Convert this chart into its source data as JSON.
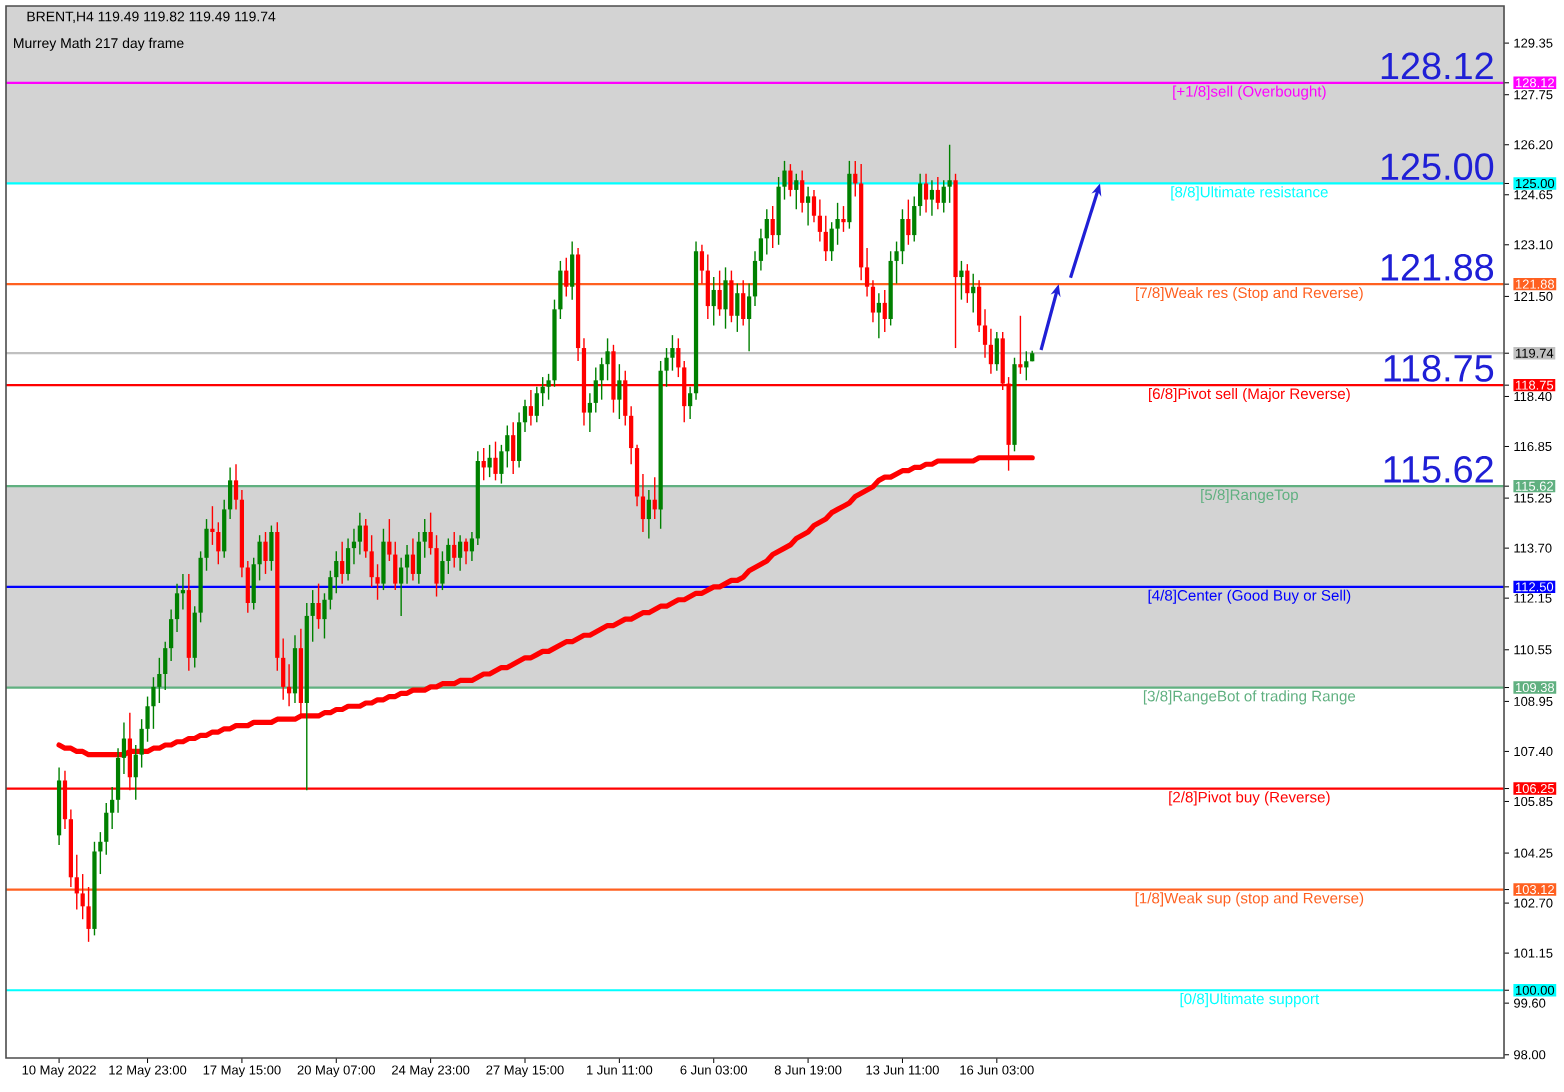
{
  "chart_data": {
    "type": "candlestick",
    "title": "BRENT,H4 119.49 119.82 119.49 119.74",
    "subtitle": "Murrey Math 217 day frame",
    "categories": [
      "10 May 2022",
      null,
      null,
      null,
      null,
      null,
      null,
      null,
      null,
      null,
      null,
      null,
      null,
      null,
      null,
      "12 May 23:00",
      null,
      null,
      null,
      null,
      null,
      null,
      null,
      null,
      null,
      null,
      null,
      null,
      null,
      null,
      null,
      "17 May 15:00",
      null,
      null,
      null,
      null,
      null,
      null,
      null,
      null,
      null,
      null,
      null,
      null,
      null,
      null,
      null,
      "20 May 07:00",
      null,
      null,
      null,
      null,
      null,
      null,
      null,
      null,
      null,
      null,
      null,
      null,
      null,
      null,
      null,
      "24 May 23:00",
      null,
      null,
      null,
      null,
      null,
      null,
      null,
      null,
      null,
      null,
      null,
      null,
      null,
      null,
      null,
      "27 May 15:00",
      null,
      null,
      null,
      null,
      null,
      null,
      null,
      null,
      null,
      null,
      null,
      null,
      null,
      null,
      null,
      "1 Jun 11:00",
      null,
      null,
      null,
      null,
      null,
      null,
      null,
      null,
      null,
      null,
      null,
      null,
      null,
      null,
      null,
      "6 Jun 03:00",
      null,
      null,
      null,
      null,
      null,
      null,
      null,
      null,
      null,
      null,
      null,
      null,
      null,
      null,
      null,
      "8 Jun 19:00",
      null,
      null,
      null,
      null,
      null,
      null,
      null,
      null,
      null,
      null,
      null,
      null,
      null,
      null,
      null,
      "13 Jun 11:00",
      null,
      null,
      null,
      null,
      null,
      null,
      null,
      null,
      null,
      null,
      null,
      null,
      null,
      null,
      null,
      "16 Jun 03:00",
      null,
      null,
      null,
      null,
      null,
      null
    ],
    "ohlc": [
      [
        104.8,
        106.9,
        104.5,
        106.5
      ],
      [
        106.5,
        106.8,
        105.0,
        105.3
      ],
      [
        105.3,
        105.6,
        103.2,
        103.5
      ],
      [
        103.5,
        104.2,
        102.5,
        103.0
      ],
      [
        103.0,
        103.6,
        102.2,
        102.6
      ],
      [
        102.6,
        103.2,
        101.5,
        101.9
      ],
      [
        101.9,
        104.6,
        101.7,
        104.3
      ],
      [
        104.3,
        104.9,
        103.6,
        104.6
      ],
      [
        104.6,
        105.8,
        104.2,
        105.5
      ],
      [
        105.5,
        106.3,
        105.0,
        105.9
      ],
      [
        105.9,
        107.5,
        105.5,
        107.2
      ],
      [
        107.2,
        108.3,
        106.7,
        107.8
      ],
      [
        107.8,
        108.6,
        106.2,
        106.6
      ],
      [
        106.6,
        107.6,
        105.9,
        107.3
      ],
      [
        107.3,
        108.4,
        106.9,
        108.1
      ],
      [
        108.1,
        109.1,
        107.7,
        108.8
      ],
      [
        108.8,
        109.7,
        108.1,
        109.4
      ],
      [
        109.4,
        110.3,
        108.9,
        109.8
      ],
      [
        109.8,
        110.8,
        109.3,
        110.6
      ],
      [
        110.6,
        111.8,
        110.2,
        111.5
      ],
      [
        111.5,
        112.6,
        111.1,
        112.3
      ],
      [
        112.3,
        112.9,
        111.8,
        112.4
      ],
      [
        112.4,
        112.9,
        109.9,
        110.3
      ],
      [
        110.3,
        111.9,
        110.0,
        111.7
      ],
      [
        111.7,
        113.6,
        111.4,
        113.4
      ],
      [
        113.4,
        114.6,
        113.0,
        114.3
      ],
      [
        114.3,
        115.0,
        113.8,
        114.2
      ],
      [
        114.2,
        114.5,
        113.2,
        113.6
      ],
      [
        113.6,
        115.2,
        113.4,
        114.9
      ],
      [
        114.9,
        116.2,
        114.6,
        115.8
      ],
      [
        115.8,
        116.3,
        114.9,
        115.2
      ],
      [
        115.2,
        115.5,
        112.8,
        113.1
      ],
      [
        113.1,
        113.3,
        111.7,
        112.0
      ],
      [
        112.0,
        113.4,
        111.8,
        113.2
      ],
      [
        113.2,
        114.1,
        112.7,
        113.9
      ],
      [
        113.9,
        114.2,
        112.9,
        113.3
      ],
      [
        113.3,
        114.4,
        113.0,
        114.2
      ],
      [
        114.2,
        114.5,
        109.9,
        110.3
      ],
      [
        110.3,
        110.9,
        109.0,
        109.4
      ],
      [
        109.4,
        110.1,
        108.8,
        109.2
      ],
      [
        109.2,
        111.0,
        108.9,
        110.6
      ],
      [
        110.6,
        111.2,
        108.5,
        108.9
      ],
      [
        108.9,
        112.0,
        106.2,
        111.6
      ],
      [
        111.6,
        112.4,
        110.8,
        112.0
      ],
      [
        112.0,
        112.6,
        111.2,
        111.5
      ],
      [
        111.5,
        112.3,
        110.9,
        112.1
      ],
      [
        112.1,
        113.0,
        111.8,
        112.8
      ],
      [
        112.8,
        113.6,
        112.3,
        113.3
      ],
      [
        113.3,
        113.9,
        112.6,
        112.9
      ],
      [
        112.9,
        114.0,
        112.7,
        113.7
      ],
      [
        113.7,
        114.3,
        113.2,
        113.9
      ],
      [
        113.9,
        114.8,
        113.5,
        114.4
      ],
      [
        114.4,
        114.6,
        113.4,
        113.6
      ],
      [
        113.6,
        114.1,
        112.5,
        112.8
      ],
      [
        112.8,
        113.2,
        112.1,
        112.6
      ],
      [
        112.6,
        114.3,
        112.4,
        113.9
      ],
      [
        113.9,
        114.6,
        113.3,
        113.5
      ],
      [
        113.5,
        113.9,
        112.4,
        112.6
      ],
      [
        112.6,
        113.4,
        111.6,
        113.1
      ],
      [
        113.1,
        113.8,
        112.6,
        113.5
      ],
      [
        113.5,
        114.0,
        112.7,
        112.9
      ],
      [
        112.9,
        114.2,
        112.6,
        113.9
      ],
      [
        113.9,
        114.6,
        113.4,
        114.2
      ],
      [
        114.2,
        114.8,
        113.5,
        113.7
      ],
      [
        113.7,
        114.1,
        112.2,
        112.6
      ],
      [
        112.6,
        113.6,
        112.4,
        113.3
      ],
      [
        113.3,
        114.0,
        112.9,
        113.8
      ],
      [
        113.8,
        114.2,
        113.1,
        113.4
      ],
      [
        113.4,
        114.1,
        113.0,
        113.9
      ],
      [
        113.9,
        114.0,
        113.2,
        113.6
      ],
      [
        113.6,
        114.2,
        113.3,
        114.0
      ],
      [
        114.0,
        116.7,
        113.8,
        116.4
      ],
      [
        116.4,
        116.8,
        115.8,
        116.2
      ],
      [
        116.2,
        116.9,
        115.9,
        116.5
      ],
      [
        116.5,
        117.0,
        115.8,
        116.0
      ],
      [
        116.0,
        116.9,
        115.7,
        116.7
      ],
      [
        116.7,
        117.5,
        116.2,
        117.2
      ],
      [
        117.2,
        117.6,
        116.0,
        116.4
      ],
      [
        116.4,
        117.9,
        116.2,
        117.6
      ],
      [
        117.6,
        118.3,
        117.3,
        118.1
      ],
      [
        118.1,
        118.6,
        117.5,
        117.8
      ],
      [
        117.8,
        118.7,
        117.6,
        118.5
      ],
      [
        118.5,
        119.0,
        118.1,
        118.7
      ],
      [
        118.7,
        119.1,
        118.3,
        118.9
      ],
      [
        118.9,
        121.4,
        118.7,
        121.1
      ],
      [
        121.1,
        122.6,
        120.8,
        122.3
      ],
      [
        122.3,
        122.7,
        121.5,
        121.8
      ],
      [
        121.8,
        123.2,
        121.4,
        122.8
      ],
      [
        122.8,
        123.0,
        119.5,
        119.9
      ],
      [
        119.9,
        120.2,
        117.5,
        117.9
      ],
      [
        117.9,
        118.5,
        117.3,
        118.2
      ],
      [
        118.2,
        119.3,
        117.9,
        118.9
      ],
      [
        118.9,
        119.6,
        118.3,
        119.4
      ],
      [
        119.4,
        120.2,
        118.9,
        119.8
      ],
      [
        119.8,
        120.0,
        117.9,
        118.3
      ],
      [
        118.3,
        119.4,
        117.7,
        118.9
      ],
      [
        118.9,
        119.2,
        117.5,
        117.8
      ],
      [
        117.8,
        118.1,
        116.3,
        116.8
      ],
      [
        116.8,
        116.9,
        115.0,
        115.3
      ],
      [
        115.3,
        116.0,
        114.2,
        114.6
      ],
      [
        114.6,
        115.5,
        114.0,
        115.2
      ],
      [
        115.2,
        115.9,
        114.6,
        114.9
      ],
      [
        114.9,
        119.5,
        114.3,
        119.2
      ],
      [
        119.2,
        119.9,
        118.7,
        119.6
      ],
      [
        119.6,
        120.3,
        119.2,
        119.9
      ],
      [
        119.9,
        120.2,
        119.0,
        119.3
      ],
      [
        119.3,
        119.5,
        117.6,
        118.1
      ],
      [
        118.1,
        118.7,
        117.7,
        118.5
      ],
      [
        118.5,
        123.2,
        118.3,
        122.9
      ],
      [
        122.9,
        123.1,
        121.9,
        122.3
      ],
      [
        122.3,
        122.8,
        120.8,
        121.2
      ],
      [
        121.2,
        122.1,
        120.6,
        121.7
      ],
      [
        121.7,
        122.3,
        120.9,
        121.1
      ],
      [
        121.1,
        122.4,
        120.5,
        122.0
      ],
      [
        122.0,
        122.3,
        120.7,
        120.9
      ],
      [
        120.9,
        121.9,
        120.4,
        121.6
      ],
      [
        121.6,
        122.0,
        120.6,
        120.8
      ],
      [
        120.8,
        121.9,
        119.8,
        121.5
      ],
      [
        121.5,
        122.9,
        121.2,
        122.6
      ],
      [
        122.6,
        123.6,
        122.3,
        123.3
      ],
      [
        123.3,
        124.2,
        122.8,
        123.9
      ],
      [
        123.9,
        124.3,
        123.0,
        123.4
      ],
      [
        123.4,
        125.2,
        123.1,
        124.9
      ],
      [
        124.9,
        125.7,
        124.5,
        125.4
      ],
      [
        125.4,
        125.6,
        124.6,
        124.8
      ],
      [
        124.8,
        125.3,
        124.2,
        125.1
      ],
      [
        125.1,
        125.4,
        124.1,
        124.4
      ],
      [
        124.4,
        124.9,
        123.7,
        124.6
      ],
      [
        124.6,
        124.8,
        123.8,
        124.0
      ],
      [
        124.0,
        124.5,
        123.2,
        123.5
      ],
      [
        123.5,
        124.0,
        122.6,
        122.9
      ],
      [
        122.9,
        123.8,
        122.6,
        123.6
      ],
      [
        123.6,
        124.4,
        123.1,
        123.9
      ],
      [
        123.9,
        124.3,
        123.5,
        123.8
      ],
      [
        123.8,
        125.7,
        123.6,
        125.3
      ],
      [
        125.3,
        125.7,
        124.6,
        125.0
      ],
      [
        125.0,
        125.6,
        122.0,
        122.4
      ],
      [
        122.4,
        123.0,
        121.5,
        121.8
      ],
      [
        121.8,
        122.0,
        120.7,
        121.0
      ],
      [
        121.0,
        121.6,
        120.2,
        121.3
      ],
      [
        121.3,
        121.7,
        120.4,
        120.8
      ],
      [
        120.8,
        122.9,
        120.6,
        122.6
      ],
      [
        122.6,
        123.2,
        121.9,
        122.9
      ],
      [
        122.9,
        124.2,
        122.5,
        123.9
      ],
      [
        123.9,
        124.5,
        123.1,
        123.4
      ],
      [
        123.4,
        124.6,
        123.2,
        124.3
      ],
      [
        124.3,
        125.3,
        124.0,
        125.0
      ],
      [
        125.0,
        125.3,
        124.1,
        124.5
      ],
      [
        124.5,
        125.1,
        124.0,
        124.8
      ],
      [
        124.8,
        125.2,
        124.2,
        124.4
      ],
      [
        124.4,
        125.1,
        124.1,
        124.9
      ],
      [
        124.9,
        126.2,
        124.4,
        125.1
      ],
      [
        125.1,
        125.3,
        119.9,
        122.1
      ],
      [
        122.1,
        122.6,
        121.4,
        122.3
      ],
      [
        122.3,
        122.5,
        121.3,
        121.6
      ],
      [
        121.6,
        122.2,
        121.0,
        121.8
      ],
      [
        121.8,
        122.0,
        120.4,
        120.6
      ],
      [
        120.6,
        121.1,
        119.6,
        120.0
      ],
      [
        120.0,
        120.5,
        119.1,
        119.4
      ],
      [
        119.4,
        120.4,
        119.2,
        120.2
      ],
      [
        120.2,
        120.4,
        118.6,
        118.8
      ],
      [
        118.8,
        119.0,
        116.1,
        116.9
      ],
      [
        116.9,
        119.6,
        116.7,
        119.4
      ],
      [
        119.4,
        120.9,
        119.1,
        119.3
      ],
      [
        119.3,
        119.8,
        118.9,
        119.49
      ],
      [
        119.49,
        119.82,
        119.49,
        119.74
      ]
    ],
    "colors": [
      "#008000",
      "#ff0000",
      "#ff0000",
      "#ff0000",
      "#ff0000",
      "#ff0000",
      "#008000",
      "#008000",
      "#008000",
      "#008000",
      "#008000",
      "#008000",
      "#ff0000",
      "#008000",
      "#008000",
      "#008000",
      "#008000",
      "#008000",
      "#008000",
      "#008000",
      "#008000",
      "#008000",
      "#ff0000",
      "#008000",
      "#008000",
      "#008000",
      "#ff0000",
      "#ff0000",
      "#008000",
      "#008000",
      "#ff0000",
      "#ff0000",
      "#ff0000",
      "#008000",
      "#008000",
      "#ff0000",
      "#008000",
      "#ff0000",
      "#ff0000",
      "#ff0000",
      "#008000",
      "#ff0000",
      "#008000",
      "#008000",
      "#ff0000",
      "#008000",
      "#008000",
      "#008000",
      "#ff0000",
      "#008000",
      "#008000",
      "#008000",
      "#ff0000",
      "#ff0000",
      "#ff0000",
      "#008000",
      "#ff0000",
      "#ff0000",
      "#008000",
      "#008000",
      "#ff0000",
      "#008000",
      "#008000",
      "#ff0000",
      "#ff0000",
      "#008000",
      "#008000",
      "#ff0000",
      "#008000",
      "#ff0000",
      "#008000",
      "#008000",
      "#ff0000",
      "#008000",
      "#ff0000",
      "#008000",
      "#008000",
      "#ff0000",
      "#008000",
      "#008000",
      "#ff0000",
      "#008000",
      "#008000",
      "#008000",
      "#008000",
      "#008000",
      "#ff0000",
      "#008000",
      "#ff0000",
      "#ff0000",
      "#008000",
      "#008000",
      "#008000",
      "#008000",
      "#ff0000",
      "#008000",
      "#ff0000",
      "#ff0000",
      "#ff0000",
      "#ff0000",
      "#008000",
      "#ff0000",
      "#008000",
      "#008000",
      "#008000",
      "#ff0000",
      "#ff0000",
      "#008000",
      "#008000",
      "#ff0000",
      "#ff0000",
      "#008000",
      "#ff0000",
      "#008000",
      "#ff0000",
      "#008000",
      "#ff0000",
      "#008000",
      "#008000",
      "#008000",
      "#008000",
      "#ff0000",
      "#008000",
      "#008000",
      "#ff0000",
      "#008000",
      "#ff0000",
      "#008000",
      "#ff0000",
      "#ff0000",
      "#ff0000",
      "#008000",
      "#008000",
      "#ff0000",
      "#008000",
      "#ff0000",
      "#ff0000",
      "#ff0000",
      "#ff0000",
      "#008000",
      "#ff0000",
      "#008000",
      "#008000",
      "#008000",
      "#ff0000",
      "#008000",
      "#008000",
      "#ff0000",
      "#008000",
      "#ff0000",
      "#008000",
      "#008000",
      "#ff0000",
      "#008000",
      "#ff0000",
      "#008000",
      "#ff0000",
      "#ff0000",
      "#ff0000",
      "#008000",
      "#ff0000",
      "#ff0000",
      "#008000",
      "#ff0000",
      "#008000",
      "#008000"
    ],
    "series": [
      {
        "type": "line",
        "color": "#ff0000",
        "values": [
          107.6,
          107.5,
          107.5,
          107.4,
          107.4,
          107.3,
          107.3,
          107.3,
          107.3,
          107.3,
          107.3,
          107.3,
          107.4,
          107.4,
          107.4,
          107.4,
          107.5,
          107.5,
          107.6,
          107.6,
          107.7,
          107.7,
          107.8,
          107.8,
          107.9,
          107.9,
          108.0,
          108.0,
          108.1,
          108.1,
          108.2,
          108.2,
          108.2,
          108.3,
          108.3,
          108.3,
          108.3,
          108.4,
          108.4,
          108.4,
          108.4,
          108.5,
          108.5,
          108.5,
          108.5,
          108.6,
          108.6,
          108.7,
          108.7,
          108.8,
          108.8,
          108.8,
          108.9,
          108.9,
          109.0,
          109.0,
          109.1,
          109.1,
          109.2,
          109.2,
          109.3,
          109.3,
          109.3,
          109.4,
          109.4,
          109.5,
          109.5,
          109.5,
          109.6,
          109.6,
          109.6,
          109.7,
          109.8,
          109.8,
          109.9,
          110.0,
          110.0,
          110.1,
          110.2,
          110.3,
          110.3,
          110.4,
          110.5,
          110.5,
          110.6,
          110.7,
          110.8,
          110.8,
          110.9,
          111.0,
          111.0,
          111.1,
          111.2,
          111.3,
          111.3,
          111.4,
          111.5,
          111.5,
          111.6,
          111.7,
          111.7,
          111.8,
          111.9,
          111.9,
          112.0,
          112.1,
          112.1,
          112.2,
          112.3,
          112.3,
          112.4,
          112.5,
          112.5,
          112.6,
          112.7,
          112.7,
          112.8,
          113.0,
          113.1,
          113.2,
          113.3,
          113.5,
          113.6,
          113.7,
          113.8,
          114.0,
          114.1,
          114.2,
          114.4,
          114.5,
          114.6,
          114.8,
          114.9,
          115.0,
          115.1,
          115.3,
          115.4,
          115.5,
          115.6,
          115.8,
          115.9,
          115.9,
          116.0,
          116.1,
          116.1,
          116.2,
          116.2,
          116.3,
          116.3,
          116.4,
          116.4,
          116.4,
          116.4,
          116.4,
          116.4,
          116.4,
          116.5,
          116.5,
          116.5,
          116.5,
          116.5,
          116.5,
          116.5,
          116.5,
          116.5,
          116.5
        ]
      }
    ],
    "ylim": [
      97.9,
      130.5
    ],
    "yticks": [
      {
        "value": 98.0,
        "label": "98.00"
      },
      {
        "value": 99.6,
        "label": "99.60"
      },
      {
        "value": 101.15,
        "label": "101.15"
      },
      {
        "value": 102.7,
        "label": "102.70"
      },
      {
        "value": 104.25,
        "label": "104.25"
      },
      {
        "value": 105.85,
        "label": "105.85"
      },
      {
        "value": 107.4,
        "label": "107.40"
      },
      {
        "value": 108.95,
        "label": "108.95"
      },
      {
        "value": 110.55,
        "label": "110.55"
      },
      {
        "value": 112.15,
        "label": "112.15"
      },
      {
        "value": 113.7,
        "label": "113.70"
      },
      {
        "value": 115.25,
        "label": "115.25"
      },
      {
        "value": 116.85,
        "label": "116.85"
      },
      {
        "value": 118.4,
        "label": "118.40"
      },
      {
        "value": 121.5,
        "label": "121.50"
      },
      {
        "value": 123.1,
        "label": "123.10"
      },
      {
        "value": 124.65,
        "label": "124.65"
      },
      {
        "value": 126.2,
        "label": "126.20"
      },
      {
        "value": 127.75,
        "label": "127.75"
      },
      {
        "value": 129.35,
        "label": "129.35"
      },
      {
        "value": 128.12,
        "label": "128.12"
      },
      {
        "value": 125.0,
        "label": "125.00"
      },
      {
        "value": 121.88,
        "label": "121.88"
      },
      {
        "value": 119.74,
        "label": "119.74"
      },
      {
        "value": 118.75,
        "label": "118.75"
      },
      {
        "value": 115.62,
        "label": "115.62"
      },
      {
        "value": 112.5,
        "label": "112.50"
      },
      {
        "value": 109.38,
        "label": "109.38"
      },
      {
        "value": 106.25,
        "label": "106.25"
      },
      {
        "value": 103.12,
        "label": "103.12"
      },
      {
        "value": 100.0,
        "label": "100.00"
      }
    ],
    "bands": [
      {
        "axis": "y",
        "from": 125.0,
        "to": 130.5,
        "color": "#d3d3d3"
      },
      {
        "axis": "y",
        "from": 109.38,
        "to": 115.62,
        "color": "#d3d3d3"
      }
    ],
    "ref_lines": [
      {
        "axis": "y",
        "value": 128.12,
        "label": "[+1/8]sell (Overbought)",
        "color": "#ff00ff"
      },
      {
        "axis": "y",
        "value": 125.0,
        "label": "[8/8]Ultimate resistance",
        "color": "#00ffff"
      },
      {
        "axis": "y",
        "value": 121.88,
        "label": "[7/8]Weak res (Stop and Reverse)",
        "color": "#ff6020"
      },
      {
        "axis": "y",
        "value": 119.74,
        "color": "#c0c0c0"
      },
      {
        "axis": "y",
        "value": 118.75,
        "label": "[6/8]Pivot sell (Major Reverse)",
        "color": "#ff0000"
      },
      {
        "axis": "y",
        "value": 115.62,
        "label": "[5/8]RangeTop",
        "color": "#60b080"
      },
      {
        "axis": "y",
        "value": 112.5,
        "label": "[4/8]Center (Good Buy or Sell)",
        "color": "#0000ff"
      },
      {
        "axis": "y",
        "value": 109.38,
        "label": "[3/8]RangeBot of trading Range",
        "color": "#60b080"
      },
      {
        "axis": "y",
        "value": 106.25,
        "label": "[2/8]Pivot buy (Reverse)",
        "color": "#ff0000"
      },
      {
        "axis": "y",
        "value": 103.12,
        "label": "[1/8]Weak sup (stop and Reverse)",
        "color": "#ff6020"
      },
      {
        "axis": "y",
        "value": 100.0,
        "label": "[0/8]Ultimate support",
        "color": "#00ffff"
      }
    ],
    "annotations": [
      {
        "text": "128.12",
        "y": 128.12
      },
      {
        "text": "125.00",
        "y": 125.0
      },
      {
        "text": "121.88",
        "y": 121.88
      },
      {
        "text": "118.75",
        "y": 118.75
      },
      {
        "text": "115.62",
        "y": 115.62
      }
    ]
  }
}
